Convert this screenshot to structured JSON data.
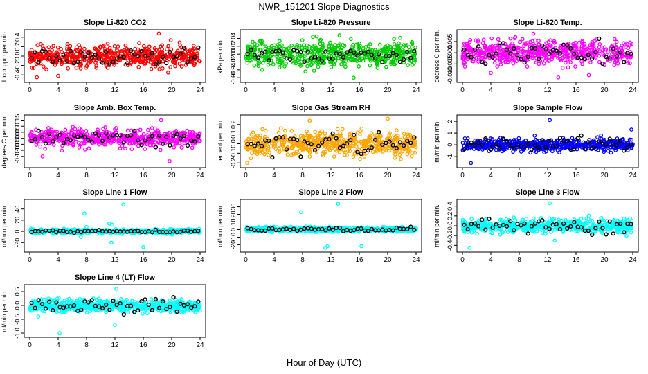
{
  "title": "NWR_151201  Slope Diagnostics",
  "xlabel": "Hour of Day (UTC)",
  "chart_data": [
    {
      "type": "scatter",
      "title": "Slope Li-820 CO2",
      "ylabel": "Licor ppm per min.",
      "color": "#ff0000",
      "xlim": [
        0,
        24
      ],
      "ylim": [
        -0.5,
        0.5
      ],
      "xticks": [
        "0",
        "4",
        "8",
        "12",
        "16",
        "20",
        "24"
      ],
      "yticks": [
        {
          "v": -0.4,
          "t": "-0.4"
        },
        {
          "v": -0.2,
          "t": "-0.2"
        },
        {
          "v": 0.0,
          "t": "0.0"
        },
        {
          "v": 0.2,
          "t": "0.2"
        },
        {
          "v": 0.4,
          "t": "0.4"
        }
      ],
      "spread": 0.15,
      "black_spread": 0.12,
      "outliers": [
        [
          18.2,
          0.48
        ],
        [
          4.0,
          -0.42
        ],
        [
          1.0,
          -0.45
        ],
        [
          19.5,
          -0.35
        ]
      ]
    },
    {
      "type": "scatter",
      "title": "Slope Li-820 Pressure",
      "ylabel": "kPa per min.",
      "color": "#00cc00",
      "xlim": [
        0,
        24
      ],
      "ylim": [
        -0.065,
        0.055
      ],
      "xticks": [
        "0",
        "4",
        "8",
        "12",
        "16",
        "20",
        "24"
      ],
      "yticks": [
        {
          "v": -0.06,
          "t": "-0.06"
        },
        {
          "v": -0.04,
          "t": "-0.04"
        },
        {
          "v": -0.02,
          "t": "-0.02"
        },
        {
          "v": 0.0,
          "t": "0.00"
        },
        {
          "v": 0.02,
          "t": "0.02"
        },
        {
          "v": 0.04,
          "t": "0.04"
        }
      ],
      "spread": 0.02,
      "black_spread": 0.012,
      "outliers": [
        [
          13.2,
          0.048
        ],
        [
          15.2,
          -0.06
        ],
        [
          10.0,
          0.045
        ]
      ]
    },
    {
      "type": "scatter",
      "title": "Slope Li-820 Temp.",
      "ylabel": "degrees C per min.",
      "color": "#ff00ff",
      "xlim": [
        0,
        24
      ],
      "ylim": [
        -0.012,
        0.009
      ],
      "xticks": [
        "0",
        "4",
        "8",
        "12",
        "16",
        "20",
        "24"
      ],
      "yticks": [
        {
          "v": -0.01,
          "t": "-0.010"
        },
        {
          "v": -0.005,
          "t": "-0.005"
        },
        {
          "v": 0.0,
          "t": "0.000"
        },
        {
          "v": 0.005,
          "t": "0.005"
        }
      ],
      "spread": 0.0035,
      "black_spread": 0.003,
      "outliers": [
        [
          10.0,
          0.0085
        ],
        [
          4.0,
          -0.009
        ],
        [
          17.8,
          -0.01
        ],
        [
          13.5,
          -0.011
        ]
      ]
    },
    {
      "type": "scatter",
      "title": "Slope Amb. Box Temp.",
      "ylabel": "degrees C per min.",
      "color": "#ff00ff",
      "xlim": [
        0,
        24
      ],
      "ylim": [
        -0.22,
        0.17
      ],
      "xticks": [
        "0",
        "4",
        "8",
        "12",
        "16",
        "20",
        "24"
      ],
      "yticks": [
        {
          "v": -0.15,
          "t": "-0.15"
        },
        {
          "v": -0.1,
          "t": "-0.10"
        },
        {
          "v": -0.05,
          "t": "-0.05"
        },
        {
          "v": 0.0,
          "t": "0.00"
        },
        {
          "v": 0.05,
          "t": "0.05"
        },
        {
          "v": 0.1,
          "t": "0.10"
        },
        {
          "v": 0.15,
          "t": "0.15"
        }
      ],
      "spread": 0.045,
      "black_spread": 0.04,
      "outliers": [
        [
          18.5,
          0.15
        ],
        [
          19.7,
          -0.19
        ],
        [
          1.8,
          -0.15
        ]
      ]
    },
    {
      "type": "scatter",
      "title": "Slope Gas Stream RH",
      "ylabel": "percent per min.",
      "color": "#ffa500",
      "xlim": [
        0,
        24
      ],
      "ylim": [
        -0.22,
        0.27
      ],
      "xticks": [
        "0",
        "4",
        "8",
        "12",
        "16",
        "20",
        "24"
      ],
      "yticks": [
        {
          "v": -0.2,
          "t": "-0.2"
        },
        {
          "v": -0.1,
          "t": "-0.1"
        },
        {
          "v": 0.0,
          "t": "0.0"
        },
        {
          "v": 0.1,
          "t": "0.1"
        },
        {
          "v": 0.2,
          "t": "0.2"
        }
      ],
      "spread": 0.08,
      "black_spread": 0.07,
      "outliers": [
        [
          9.0,
          0.24
        ],
        [
          20.0,
          0.26
        ],
        [
          0.2,
          -0.2
        ]
      ]
    },
    {
      "type": "scatter",
      "title": "Slope Sample Flow",
      "ylabel": "ml/min per min.",
      "color": "#0000ff",
      "xlim": [
        0,
        24
      ],
      "ylim": [
        -1.7,
        2.3
      ],
      "xticks": [
        "0",
        "4",
        "8",
        "12",
        "16",
        "20",
        "24"
      ],
      "yticks": [
        {
          "v": -1,
          "t": "-1"
        },
        {
          "v": 0,
          "t": "0"
        },
        {
          "v": 1,
          "t": "1"
        },
        {
          "v": 2,
          "t": "2"
        }
      ],
      "spread": 0.35,
      "black_spread": 0.35,
      "outliers": [
        [
          12.3,
          2.1
        ],
        [
          1.2,
          -1.55
        ],
        [
          23.8,
          1.3
        ]
      ]
    },
    {
      "type": "scatter",
      "title": "Slope Line 1 Flow",
      "ylabel": "ml/min per min.",
      "color": "#00ffff",
      "xlim": [
        0,
        24
      ],
      "ylim": [
        -32,
        52
      ],
      "xticks": [
        "0",
        "4",
        "8",
        "12",
        "16",
        "20",
        "24"
      ],
      "yticks": [
        {
          "v": -20,
          "t": "-20"
        },
        {
          "v": 0,
          "t": "0"
        },
        {
          "v": 20,
          "t": "20"
        },
        {
          "v": 40,
          "t": "40"
        }
      ],
      "spread": 2.5,
      "black_spread": 1.5,
      "outliers": [
        [
          13.2,
          48
        ],
        [
          7.7,
          32
        ],
        [
          11.2,
          14
        ],
        [
          11.6,
          12
        ],
        [
          8.0,
          8
        ],
        [
          7.2,
          -10
        ],
        [
          11.5,
          -20
        ],
        [
          16.0,
          -28
        ]
      ]
    },
    {
      "type": "scatter",
      "title": "Slope Line 2 Flow",
      "ylabel": "ml/min per min.",
      "color": "#00ffff",
      "xlim": [
        0,
        24
      ],
      "ylim": [
        -26,
        36
      ],
      "xticks": [
        "0",
        "4",
        "8",
        "12",
        "16",
        "20",
        "24"
      ],
      "yticks": [
        {
          "v": -20,
          "t": "-20"
        },
        {
          "v": -10,
          "t": "-10"
        },
        {
          "v": 0,
          "t": "0"
        },
        {
          "v": 10,
          "t": "10"
        },
        {
          "v": 20,
          "t": "20"
        },
        {
          "v": 30,
          "t": "30"
        }
      ],
      "spread": 2.0,
      "black_spread": 1.5,
      "outliers": [
        [
          13.0,
          34
        ],
        [
          7.8,
          23
        ],
        [
          11.5,
          -22
        ],
        [
          16.3,
          -22
        ],
        [
          11.2,
          -24
        ]
      ]
    },
    {
      "type": "scatter",
      "title": "Slope Line 3 Flow",
      "ylabel": "ml/min per min.",
      "color": "#00ffff",
      "xlim": [
        0,
        24
      ],
      "ylim": [
        -0.48,
        0.48
      ],
      "xticks": [
        "0",
        "4",
        "8",
        "12",
        "16",
        "20",
        "24"
      ],
      "yticks": [
        {
          "v": -0.4,
          "t": "-0.4"
        },
        {
          "v": -0.2,
          "t": "-0.2"
        },
        {
          "v": 0.0,
          "t": "0.0"
        },
        {
          "v": 0.2,
          "t": "0.2"
        },
        {
          "v": 0.4,
          "t": "0.4"
        }
      ],
      "spread": 0.09,
      "black_spread": 0.09,
      "outliers": [
        [
          12.3,
          0.46
        ],
        [
          1.0,
          -0.45
        ],
        [
          13.0,
          -0.3
        ]
      ]
    },
    {
      "type": "scatter",
      "title": "Slope Line 4 (LT) Flow",
      "ylabel": "ml/min per min.",
      "color": "#00ffff",
      "xlim": [
        0,
        24
      ],
      "ylim": [
        -1.05,
        0.65
      ],
      "xticks": [
        "0",
        "4",
        "8",
        "12",
        "16",
        "20",
        "24"
      ],
      "yticks": [
        {
          "v": -1.0,
          "t": "-1.0"
        },
        {
          "v": -0.5,
          "t": "-0.5"
        },
        {
          "v": 0.0,
          "t": "0.0"
        },
        {
          "v": 0.5,
          "t": "0.5"
        }
      ],
      "spread": 0.15,
      "black_spread": 0.15,
      "outliers": [
        [
          12.2,
          0.6
        ],
        [
          4.2,
          -1.0
        ],
        [
          12.0,
          -0.7
        ],
        [
          1.2,
          -0.4
        ]
      ]
    }
  ]
}
